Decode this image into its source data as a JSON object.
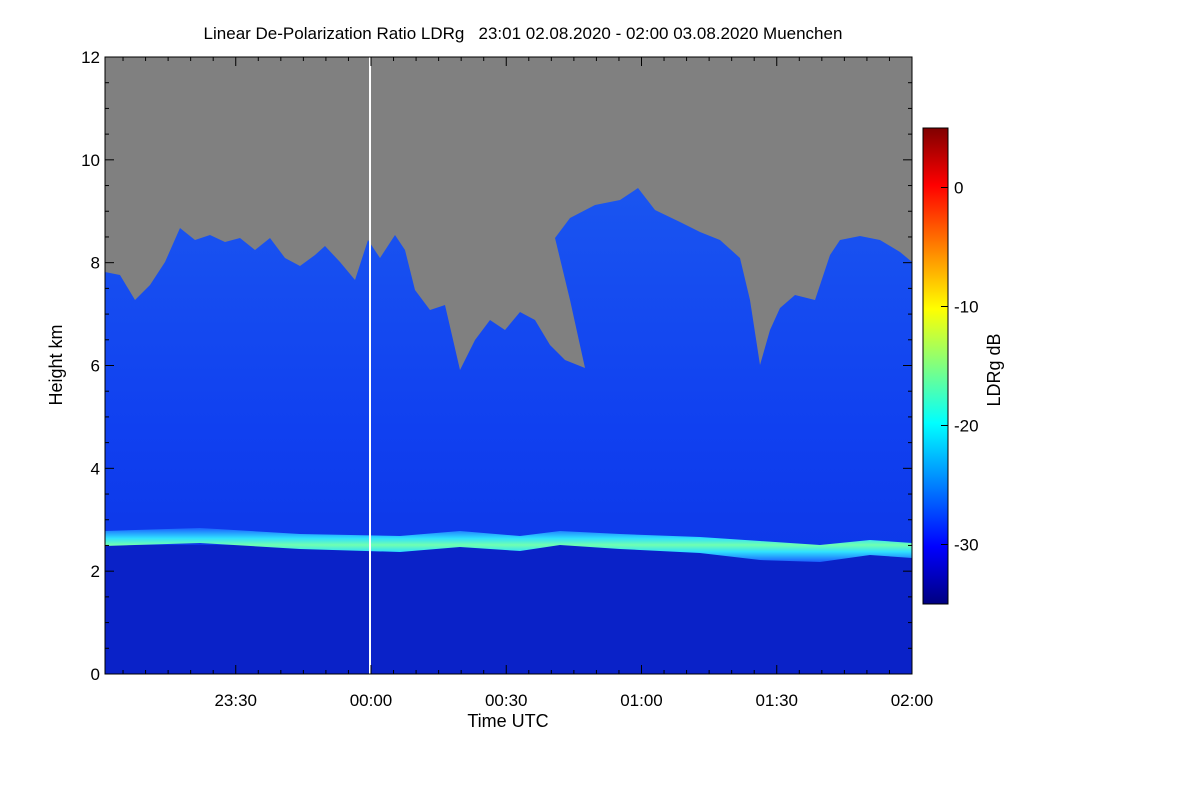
{
  "chart_data": {
    "type": "heatmap",
    "title": "Linear De-Polarization Ratio LDRg   23:01 02.08.2020 - 02:00 03.08.2020 Muenchen",
    "xlabel": "Time UTC",
    "ylabel": "Height km",
    "x_range": [
      "23:01",
      "02:00"
    ],
    "ylim": [
      0,
      12
    ],
    "x_ticks": [
      "23:30",
      "00:00",
      "00:30",
      "01:00",
      "01:30",
      "02:00"
    ],
    "y_ticks": [
      "0",
      "2",
      "4",
      "6",
      "8",
      "10",
      "12"
    ],
    "colorbar": {
      "label": "LDRg dB",
      "range": [
        -35,
        5
      ],
      "ticks": [
        "0",
        "-10",
        "-20",
        "-30"
      ],
      "colormap": [
        "#000080",
        "#0000ff",
        "#0080ff",
        "#00ffff",
        "#80ff80",
        "#ffff00",
        "#ff8000",
        "#ff0000",
        "#800000"
      ]
    },
    "no_data_color": "#808080",
    "features": {
      "bright_layer_height_km": [
        2.7,
        2.3
      ],
      "cloud_top_height_km_range": [
        6,
        9.5
      ],
      "data_gap_time": "00:00"
    }
  }
}
